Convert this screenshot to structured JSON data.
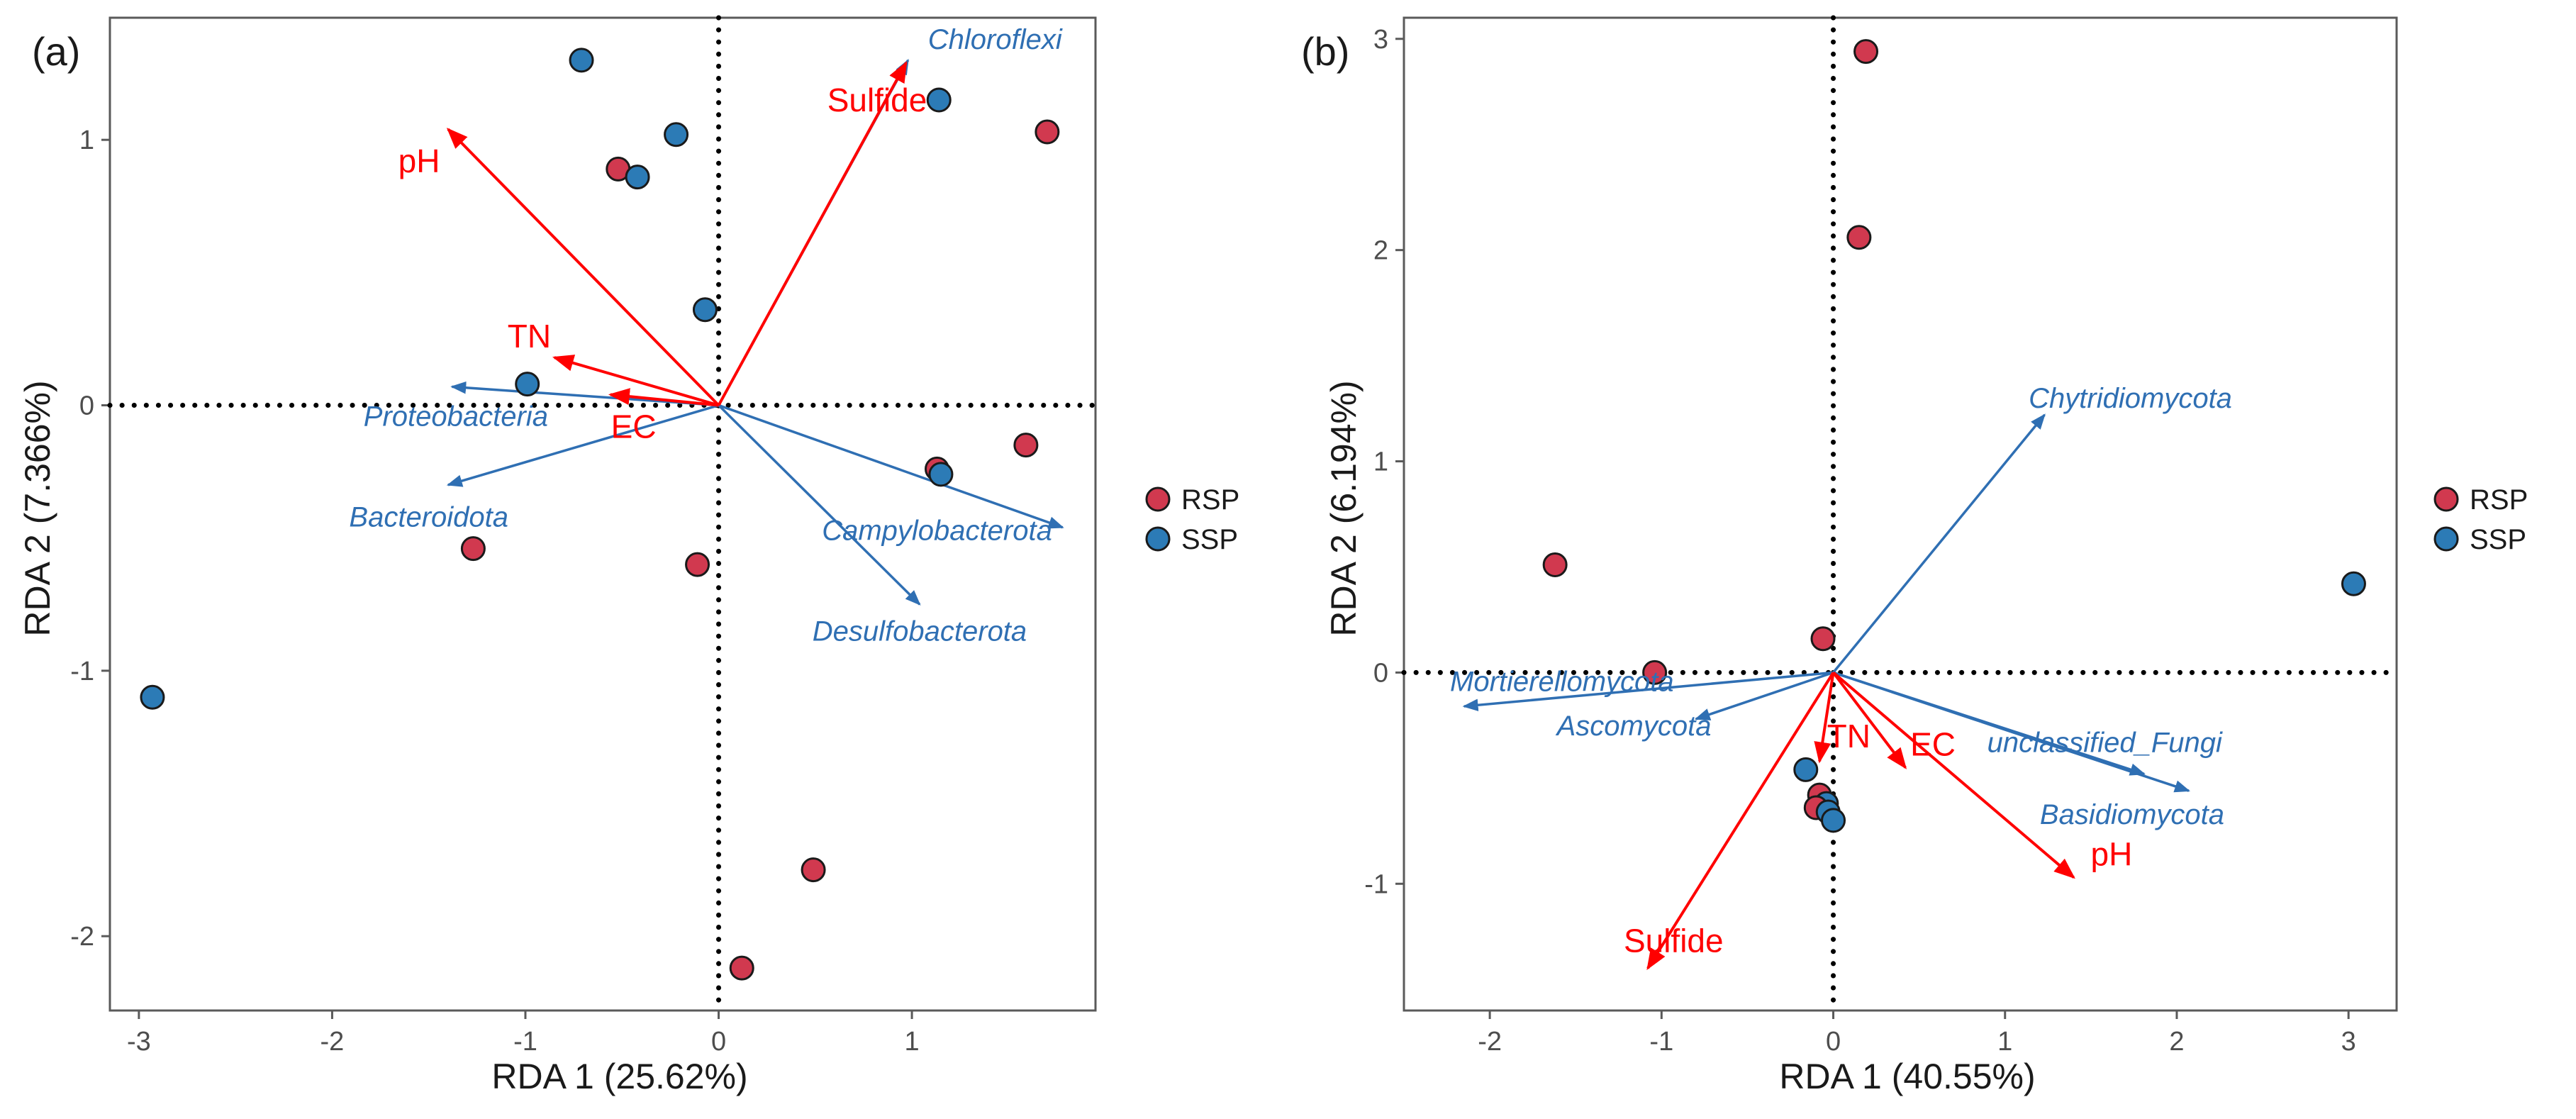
{
  "colors": {
    "RSP": "#d1394f",
    "SSP": "#2c7bb6",
    "env_arrow": "#ff0000",
    "species_arrow": "#2f6fb3",
    "frame": "#5a5a5a"
  },
  "chart_data": [
    {
      "type": "scatter",
      "panel_label": "(a)",
      "xlabel": "RDA 1 (25.62%)",
      "ylabel": "RDA 2 (7.366%)",
      "xlim": [
        -3.15,
        1.95
      ],
      "ylim": [
        -2.28,
        1.46
      ],
      "xticks": [
        -3,
        -2,
        -1,
        0,
        1
      ],
      "yticks": [
        -2,
        -1,
        0,
        1
      ],
      "legend": {
        "position": "right",
        "entries": [
          "RSP",
          "SSP"
        ]
      },
      "points": [
        {
          "x": -0.71,
          "y": 1.3,
          "group": "SSP"
        },
        {
          "x": -0.22,
          "y": 1.02,
          "group": "SSP"
        },
        {
          "x": -0.52,
          "y": 0.89,
          "group": "RSP"
        },
        {
          "x": -0.42,
          "y": 0.86,
          "group": "SSP"
        },
        {
          "x": -0.07,
          "y": 0.36,
          "group": "SSP"
        },
        {
          "x": -0.99,
          "y": 0.08,
          "group": "SSP"
        },
        {
          "x": 1.14,
          "y": 1.15,
          "group": "SSP"
        },
        {
          "x": 1.7,
          "y": 1.03,
          "group": "RSP"
        },
        {
          "x": 1.59,
          "y": -0.15,
          "group": "RSP"
        },
        {
          "x": 1.13,
          "y": -0.24,
          "group": "RSP"
        },
        {
          "x": 1.15,
          "y": -0.26,
          "group": "SSP"
        },
        {
          "x": -1.27,
          "y": -0.54,
          "group": "RSP"
        },
        {
          "x": -0.11,
          "y": -0.6,
          "group": "RSP"
        },
        {
          "x": -2.93,
          "y": -1.1,
          "group": "SSP"
        },
        {
          "x": 0.49,
          "y": -1.75,
          "group": "RSP"
        },
        {
          "x": 0.12,
          "y": -2.12,
          "group": "RSP"
        }
      ],
      "env_vectors": [
        {
          "name": "pH",
          "x": -1.4,
          "y": 1.04,
          "label_x": -1.55,
          "label_y": 0.92
        },
        {
          "name": "Sulfide",
          "x": 0.97,
          "y": 1.29,
          "label_x": 0.82,
          "label_y": 1.15
        },
        {
          "name": "TN",
          "x": -0.85,
          "y": 0.18,
          "label_x": -0.98,
          "label_y": 0.26
        },
        {
          "name": "EC",
          "x": -0.56,
          "y": 0.04,
          "label_x": -0.44,
          "label_y": -0.08
        }
      ],
      "species_vectors": [
        {
          "name": "Chloroflexi",
          "x": 0.98,
          "y": 1.3,
          "label_x": 1.43,
          "label_y": 1.38
        },
        {
          "name": "Proteobacteria",
          "x": -1.38,
          "y": 0.07,
          "label_x": -1.36,
          "label_y": -0.04
        },
        {
          "name": "Bacteroidota",
          "x": -1.4,
          "y": -0.3,
          "label_x": -1.5,
          "label_y": -0.42
        },
        {
          "name": "Campylobacterota",
          "x": 1.78,
          "y": -0.46,
          "label_x": 1.13,
          "label_y": -0.47
        },
        {
          "name": "Desulfobacterota",
          "x": 1.04,
          "y": -0.75,
          "label_x": 1.04,
          "label_y": -0.85
        }
      ]
    },
    {
      "type": "scatter",
      "panel_label": "(b)",
      "xlabel": "RDA 1 (40.55%)",
      "ylabel": "RDA 2 (6.194%)",
      "xlim": [
        -2.5,
        3.28
      ],
      "ylim": [
        -1.6,
        3.1
      ],
      "xticks": [
        -2,
        -1,
        0,
        1,
        2,
        3
      ],
      "yticks": [
        -1,
        0,
        1,
        2,
        3
      ],
      "legend": {
        "position": "right",
        "entries": [
          "RSP",
          "SSP"
        ]
      },
      "points": [
        {
          "x": 0.19,
          "y": 2.94,
          "group": "RSP"
        },
        {
          "x": 0.15,
          "y": 2.06,
          "group": "RSP"
        },
        {
          "x": -1.62,
          "y": 0.51,
          "group": "RSP"
        },
        {
          "x": -1.04,
          "y": 0.0,
          "group": "RSP"
        },
        {
          "x": -0.06,
          "y": 0.16,
          "group": "RSP"
        },
        {
          "x": 3.03,
          "y": 0.42,
          "group": "SSP"
        },
        {
          "x": -0.16,
          "y": -0.46,
          "group": "SSP"
        },
        {
          "x": -0.08,
          "y": -0.58,
          "group": "RSP"
        },
        {
          "x": -0.04,
          "y": -0.62,
          "group": "SSP"
        },
        {
          "x": -0.1,
          "y": -0.64,
          "group": "RSP"
        },
        {
          "x": -0.03,
          "y": -0.66,
          "group": "SSP"
        },
        {
          "x": 0.0,
          "y": -0.7,
          "group": "SSP"
        }
      ],
      "env_vectors": [
        {
          "name": "Sulfide",
          "x": -1.08,
          "y": -1.4,
          "label_x": -0.93,
          "label_y": -1.27
        },
        {
          "name": "pH",
          "x": 1.4,
          "y": -0.97,
          "label_x": 1.62,
          "label_y": -0.86
        },
        {
          "name": "EC",
          "x": 0.42,
          "y": -0.45,
          "label_x": 0.58,
          "label_y": -0.34
        },
        {
          "name": "TN",
          "x": -0.08,
          "y": -0.42,
          "label_x": 0.09,
          "label_y": -0.3
        }
      ],
      "species_vectors": [
        {
          "name": "Chytridiomycota",
          "x": 1.23,
          "y": 1.22,
          "label_x": 1.73,
          "label_y": 1.3
        },
        {
          "name": "Mortierellomycota",
          "x": -2.15,
          "y": -0.16,
          "label_x": -1.58,
          "label_y": -0.04
        },
        {
          "name": "Ascomycota",
          "x": -0.8,
          "y": -0.22,
          "label_x": -1.16,
          "label_y": -0.25
        },
        {
          "name": "unclassified_Fungi",
          "x": 1.81,
          "y": -0.48,
          "label_x": 1.58,
          "label_y": -0.33
        },
        {
          "name": "Basidiomycota",
          "x": 2.07,
          "y": -0.56,
          "label_x": 1.74,
          "label_y": -0.67
        }
      ]
    }
  ]
}
